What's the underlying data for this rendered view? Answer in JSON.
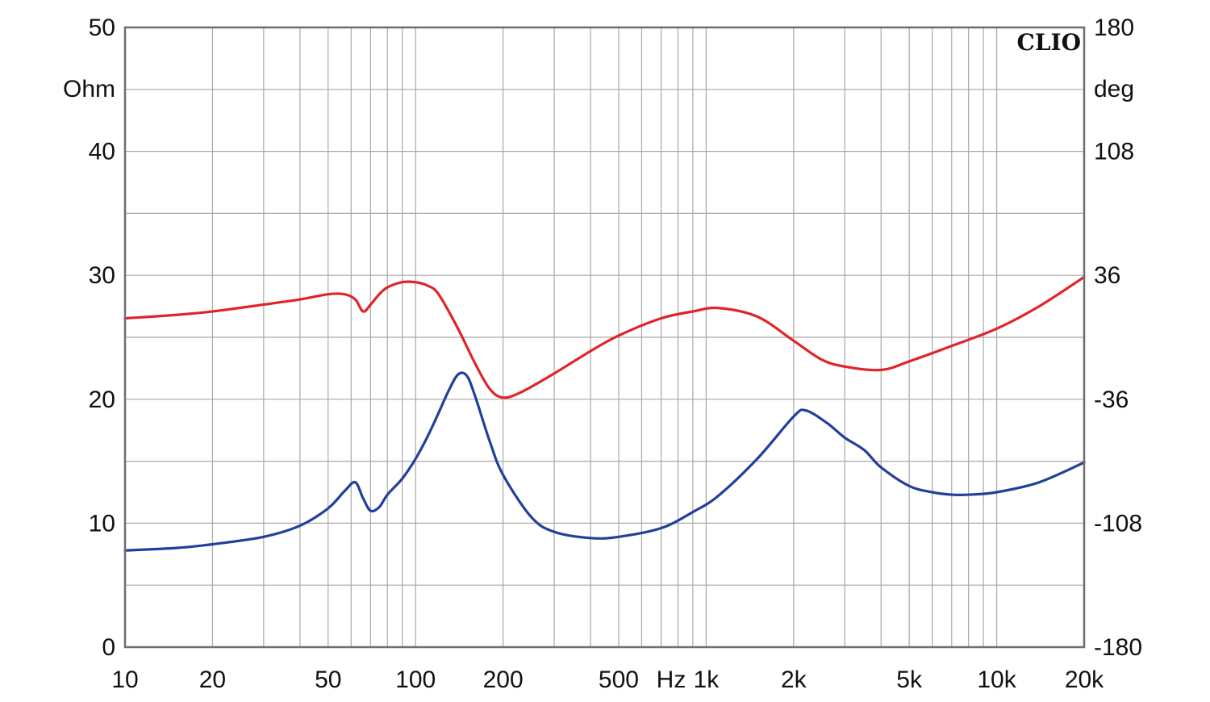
{
  "chart_data": {
    "type": "line",
    "brand": "CLIO",
    "x_scale": "log",
    "xlim": [
      10,
      20000
    ],
    "x_ticks": [
      {
        "value": 10,
        "label": "10"
      },
      {
        "value": 20,
        "label": "20"
      },
      {
        "value": 50,
        "label": "50"
      },
      {
        "value": 100,
        "label": "100"
      },
      {
        "value": 200,
        "label": "200"
      },
      {
        "value": 500,
        "label": "500"
      },
      {
        "value": 1000,
        "label": "1k"
      },
      {
        "value": 2000,
        "label": "2k"
      },
      {
        "value": 5000,
        "label": "5k"
      },
      {
        "value": 10000,
        "label": "10k"
      },
      {
        "value": 20000,
        "label": "20k"
      }
    ],
    "x_unit": "Hz",
    "y_left": {
      "unit": "Ohm",
      "range": [
        0,
        50
      ],
      "ticks": [
        "0",
        "10",
        "20",
        "30",
        "40",
        "50"
      ]
    },
    "y_right": {
      "unit": "deg",
      "range": [
        -180,
        180
      ],
      "ticks": [
        "-180",
        "-108",
        "-36",
        "36",
        "108",
        "180"
      ]
    },
    "grid": true,
    "colors": {
      "impedance": "#22409a",
      "phase": "#e0242a",
      "grid": "#a8a8a8",
      "frame": "#6e6e6e"
    },
    "series": [
      {
        "id": "impedance",
        "axis": "left",
        "x": [
          10,
          15,
          20,
          30,
          40,
          50,
          57,
          62,
          66,
          70,
          75,
          80,
          90,
          100,
          110,
          120,
          130,
          140,
          150,
          160,
          180,
          200,
          250,
          300,
          400,
          500,
          700,
          900,
          1100,
          1500,
          2000,
          2200,
          2600,
          3000,
          3500,
          4000,
          5000,
          6000,
          7000,
          8000,
          10000,
          14000,
          20000
        ],
        "values": [
          7.8,
          8.0,
          8.3,
          8.9,
          9.8,
          11.2,
          12.6,
          13.3,
          12.0,
          11.0,
          11.3,
          12.3,
          13.6,
          15.2,
          17.0,
          18.9,
          20.7,
          22.0,
          21.9,
          20.3,
          16.6,
          13.9,
          10.5,
          9.3,
          8.8,
          8.9,
          9.6,
          10.9,
          12.2,
          15.2,
          18.6,
          19.1,
          18.1,
          16.9,
          15.9,
          14.5,
          13.0,
          12.5,
          12.3,
          12.3,
          12.5,
          13.3,
          14.9
        ]
      },
      {
        "id": "phase",
        "axis": "right",
        "x": [
          10,
          15,
          20,
          30,
          40,
          50,
          57,
          62,
          66,
          70,
          75,
          80,
          90,
          100,
          110,
          120,
          140,
          160,
          180,
          200,
          230,
          300,
          400,
          500,
          700,
          900,
          1100,
          1500,
          2000,
          2500,
          3000,
          4000,
          5000,
          7000,
          10000,
          14000,
          20000
        ],
        "values": [
          11,
          13,
          15,
          19,
          22,
          25,
          25,
          22,
          15,
          19,
          25,
          29,
          32,
          32,
          30,
          25,
          5,
          -15,
          -30,
          -35,
          -32,
          -21,
          -8,
          1,
          11,
          15,
          17,
          12,
          -2,
          -13,
          -17,
          -19,
          -14,
          -5,
          5,
          18,
          35
        ]
      }
    ]
  }
}
